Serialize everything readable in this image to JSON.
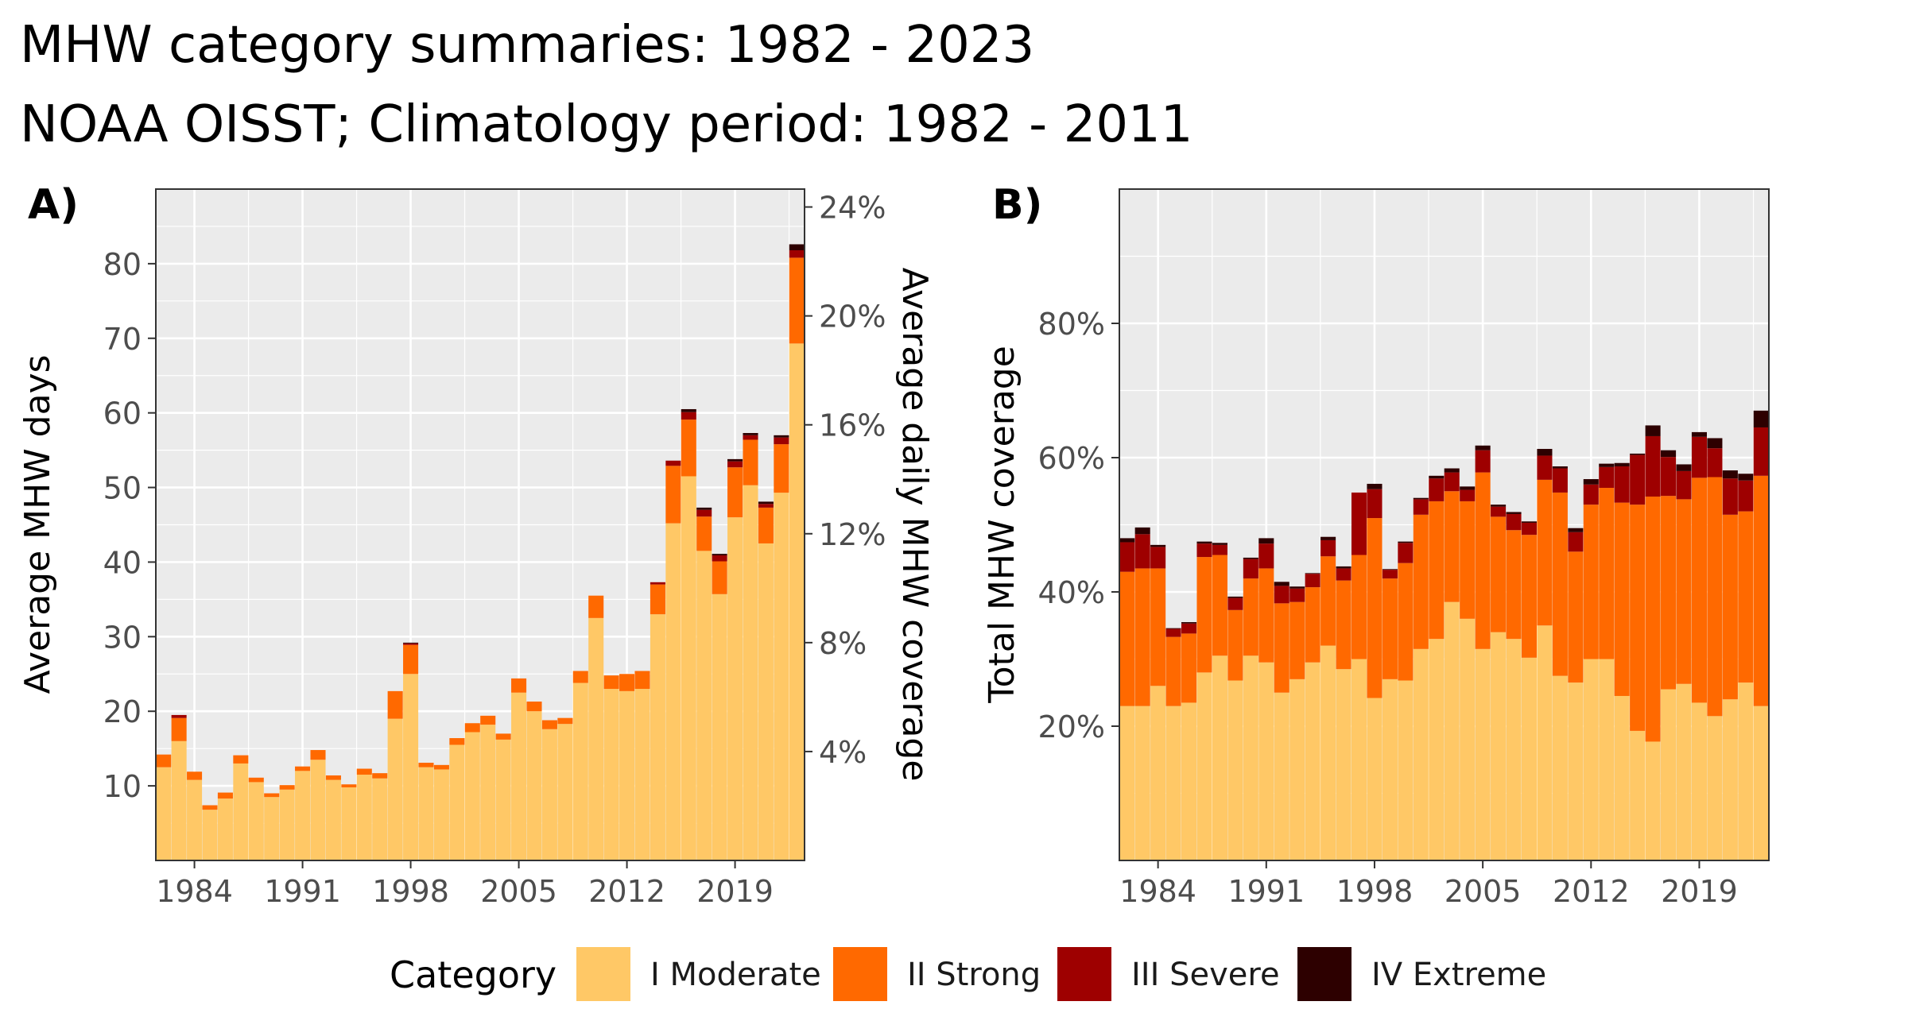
{
  "title_line1": "MHW category summaries: 1982 - 2023",
  "title_line2": "NOAA OISST; Climatology period: 1982 - 2011",
  "legend": {
    "title": "Category",
    "entries": [
      {
        "label": "I Moderate",
        "color": "#ffc866"
      },
      {
        "label": "II Strong",
        "color": "#ff6900"
      },
      {
        "label": "III Severe",
        "color": "#9e0000"
      },
      {
        "label": "IV Extreme",
        "color": "#2d0000"
      }
    ]
  },
  "chart_data": [
    {
      "panel_label": "A)",
      "type": "bar",
      "stacked": true,
      "ylabel": "Average MHW days",
      "y2label": "Average daily MHW coverage",
      "ylim": [
        0,
        90
      ],
      "yticks": [
        10,
        20,
        30,
        40,
        50,
        60,
        70,
        80
      ],
      "y2ticks": [
        "4%",
        "8%",
        "12%",
        "16%",
        "20%",
        "24%"
      ],
      "y2values": [
        4,
        8,
        12,
        16,
        20,
        24
      ],
      "xticks": [
        "1984",
        "1991",
        "1998",
        "2005",
        "2012",
        "2019"
      ],
      "grid": true,
      "categories": [
        1982,
        1983,
        1984,
        1985,
        1986,
        1987,
        1988,
        1989,
        1990,
        1991,
        1992,
        1993,
        1994,
        1995,
        1996,
        1997,
        1998,
        1999,
        2000,
        2001,
        2002,
        2003,
        2004,
        2005,
        2006,
        2007,
        2008,
        2009,
        2010,
        2011,
        2012,
        2013,
        2014,
        2015,
        2016,
        2017,
        2018,
        2019,
        2020,
        2021,
        2022,
        2023
      ],
      "series": [
        {
          "name": "I Moderate",
          "values": [
            12.5,
            16,
            10.8,
            6.8,
            8.3,
            13,
            10.5,
            8.5,
            9.5,
            12,
            13.5,
            10.8,
            9.8,
            11.5,
            11,
            19,
            25,
            12.5,
            12.2,
            15.5,
            17.2,
            18.2,
            16.2,
            22.5,
            20,
            17.6,
            18.3,
            23.8,
            32.5,
            23,
            22.7,
            23,
            33,
            45.2,
            51.5,
            41.5,
            35.7,
            46,
            50.3,
            42.5,
            49.3,
            69.3
          ]
        },
        {
          "name": "II Strong",
          "values": [
            1.7,
            3.1,
            1.1,
            0.6,
            0.8,
            1.1,
            0.6,
            0.5,
            0.6,
            0.6,
            1.3,
            0.6,
            0.4,
            0.8,
            0.7,
            3.7,
            3.9,
            0.6,
            0.6,
            0.9,
            1.2,
            1.2,
            0.8,
            1.9,
            1.3,
            1.2,
            0.8,
            1.6,
            3,
            1.8,
            2.3,
            2.4,
            4,
            7.7,
            7.6,
            4.6,
            4.4,
            6.7,
            6.1,
            4.8,
            6.5,
            11.5
          ]
        },
        {
          "name": "III Severe",
          "values": [
            0,
            0.4,
            0,
            0,
            0,
            0,
            0,
            0,
            0,
            0,
            0,
            0,
            0,
            0,
            0,
            0,
            0.2,
            0,
            0,
            0,
            0,
            0,
            0,
            0,
            0,
            0,
            0,
            0,
            0,
            0,
            0,
            0,
            0.3,
            0.7,
            1,
            0.9,
            0.8,
            0.8,
            0.6,
            0.5,
            0.9,
            1
          ]
        },
        {
          "name": "IV Extreme",
          "values": [
            0,
            0,
            0,
            0,
            0,
            0,
            0,
            0,
            0,
            0,
            0,
            0,
            0,
            0,
            0,
            0,
            0.1,
            0,
            0,
            0,
            0,
            0,
            0,
            0,
            0,
            0,
            0,
            0,
            0,
            0,
            0,
            0,
            0,
            0,
            0.4,
            0.3,
            0.2,
            0.3,
            0.3,
            0.3,
            0.3,
            0.8
          ]
        }
      ]
    },
    {
      "panel_label": "B)",
      "type": "bar",
      "stacked": true,
      "ylabel": "Total MHW coverage",
      "ylim": [
        0,
        100
      ],
      "yticks": [
        "20%",
        "40%",
        "60%",
        "80%"
      ],
      "ytick_values": [
        20,
        40,
        60,
        80
      ],
      "xticks": [
        "1984",
        "1991",
        "1998",
        "2005",
        "2012",
        "2019"
      ],
      "grid": true,
      "categories": [
        1982,
        1983,
        1984,
        1985,
        1986,
        1987,
        1988,
        1989,
        1990,
        1991,
        1992,
        1993,
        1994,
        1995,
        1996,
        1997,
        1998,
        1999,
        2000,
        2001,
        2002,
        2003,
        2004,
        2005,
        2006,
        2007,
        2008,
        2009,
        2010,
        2011,
        2012,
        2013,
        2014,
        2015,
        2016,
        2017,
        2018,
        2019,
        2020,
        2021,
        2022,
        2023
      ],
      "series": [
        {
          "name": "I Moderate",
          "values": [
            23,
            23,
            26,
            23,
            23.5,
            28,
            30.5,
            26.8,
            30.5,
            29.5,
            25,
            27,
            29.5,
            32,
            28.5,
            30,
            24.2,
            27,
            26.8,
            31.5,
            33,
            38.5,
            36,
            31.5,
            34,
            33,
            30.2,
            35,
            27.5,
            26.5,
            30,
            30,
            24.5,
            19.3,
            17.7,
            25.5,
            26.3,
            23.5,
            21.5,
            24,
            26.5,
            23
          ]
        },
        {
          "name": "II Strong",
          "values": [
            20,
            20.5,
            17.5,
            10.3,
            10.3,
            17.2,
            15,
            10.5,
            11.5,
            14,
            13.3,
            11.5,
            11.2,
            13.3,
            13.2,
            15.5,
            26.8,
            15,
            17.5,
            20,
            20.5,
            16.5,
            17.5,
            26.3,
            17.2,
            16.2,
            18.3,
            21.7,
            27.3,
            19.5,
            23,
            25.5,
            28.8,
            33.7,
            36.5,
            28.8,
            27.5,
            33.5,
            35.6,
            27.5,
            25.5,
            34.3
          ]
        },
        {
          "name": "III Severe",
          "values": [
            4.4,
            5.1,
            3.2,
            1.2,
            1.5,
            2,
            1.5,
            1.8,
            2.9,
            3.7,
            2.6,
            2,
            2,
            2.4,
            1.8,
            9.3,
            4.3,
            1.3,
            3,
            2.3,
            3.4,
            2.8,
            1.7,
            3.3,
            1.5,
            2.4,
            1.8,
            3.6,
            3.6,
            2.9,
            3,
            3.1,
            5.4,
            7.4,
            9,
            5.8,
            4.2,
            6.1,
            4.3,
            5.4,
            4.6,
            7.2
          ]
        },
        {
          "name": "IV Extreme",
          "values": [
            0.6,
            1,
            0.3,
            0.1,
            0.2,
            0.3,
            0.3,
            0.2,
            0.2,
            0.8,
            0.6,
            0.3,
            0.1,
            0.5,
            0.3,
            0,
            0.8,
            0.1,
            0.2,
            0.2,
            0.4,
            0.6,
            0.5,
            0.7,
            0.3,
            0.3,
            0.2,
            1,
            0.3,
            0.6,
            0.8,
            0.5,
            0.5,
            0.2,
            1.6,
            1,
            1,
            0.7,
            1.5,
            1.2,
            1,
            2.5
          ]
        }
      ]
    }
  ]
}
